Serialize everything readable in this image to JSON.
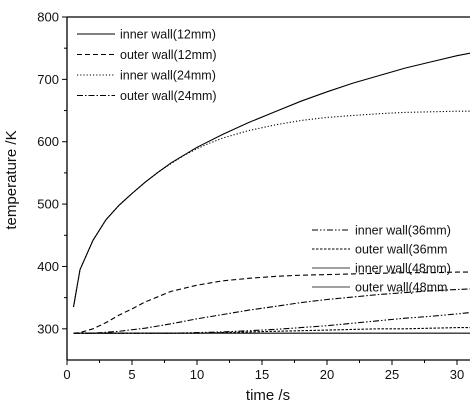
{
  "chart_data": {
    "type": "line",
    "title": "",
    "xlabel": "time  /s",
    "ylabel": "temperature  /K",
    "xlim": [
      0,
      31
    ],
    "ylim": [
      250,
      800
    ],
    "xticks": [
      0,
      5,
      10,
      15,
      20,
      25,
      30
    ],
    "yticks": [
      300,
      400,
      500,
      600,
      700,
      800
    ],
    "grid": false,
    "legend_groups": [
      "top-left",
      "right-middle"
    ],
    "series": [
      {
        "name": "inner wall(12mm)",
        "style": "solid",
        "legend_group": 0,
        "x": [
          0.5,
          1,
          2,
          3,
          4,
          5,
          6,
          7,
          8,
          10,
          12,
          14,
          16,
          18,
          20,
          22,
          24,
          26,
          28,
          30,
          31
        ],
        "y": [
          335,
          395,
          442,
          475,
          498,
          517,
          535,
          551,
          566,
          591,
          612,
          631,
          648,
          665,
          680,
          694,
          706,
          718,
          728,
          738,
          742
        ]
      },
      {
        "name": "outer wall(12mm)",
        "style": "dashed",
        "legend_group": 0,
        "x": [
          0.5,
          1,
          2,
          3,
          4,
          5,
          6,
          8,
          10,
          12,
          14,
          16,
          18,
          20,
          22,
          24,
          26,
          28,
          30,
          31
        ],
        "y": [
          293,
          294,
          300,
          310,
          322,
          332,
          343,
          360,
          370,
          377,
          381,
          384,
          386,
          387,
          388,
          389,
          390,
          390,
          391,
          391
        ]
      },
      {
        "name": "inner wall(24mm)",
        "style": "dotted",
        "legend_group": 0,
        "x": [
          0.5,
          1,
          2,
          3,
          4,
          5,
          6,
          7,
          8,
          9,
          10,
          11,
          12,
          13,
          14,
          16,
          18,
          20,
          22,
          24,
          26,
          28,
          30,
          31
        ],
        "y": [
          335,
          395,
          442,
          475,
          498,
          517,
          535,
          551,
          565,
          578,
          589,
          598,
          606,
          612,
          618,
          627,
          634,
          639,
          642,
          645,
          647,
          648,
          649,
          649
        ]
      },
      {
        "name": "outer wall(24mm)",
        "style": "dashdot",
        "legend_group": 0,
        "x": [
          0.5,
          2,
          4,
          6,
          8,
          10,
          12,
          14,
          16,
          18,
          20,
          22,
          24,
          26,
          28,
          30,
          31
        ],
        "y": [
          293,
          293,
          296,
          301,
          308,
          316,
          323,
          330,
          336,
          342,
          347,
          351,
          355,
          358,
          361,
          363,
          364
        ]
      },
      {
        "name": "inner wall(36mm)",
        "style": "dashdotdot",
        "legend_group": 1,
        "x": [
          0.5,
          4,
          8,
          10,
          12,
          14,
          16,
          18,
          20,
          22,
          24,
          26,
          28,
          30,
          31
        ],
        "y": [
          293,
          293,
          293,
          294,
          295,
          297,
          299,
          302,
          305,
          309,
          313,
          317,
          320,
          324,
          326
        ]
      },
      {
        "name": "outer wall(36mm",
        "style": "shortdash",
        "legend_group": 1,
        "x": [
          0.5,
          4,
          8,
          10,
          12,
          14,
          16,
          18,
          20,
          22,
          24,
          26,
          28,
          30,
          31
        ],
        "y": [
          293,
          293,
          293,
          293,
          294,
          295,
          296,
          297,
          298,
          299,
          300,
          300,
          301,
          302,
          302
        ]
      },
      {
        "name": "inner wall(48mm)",
        "style": "solid-thin",
        "legend_group": 1,
        "x": [
          0.5,
          10,
          20,
          31
        ],
        "y": [
          293,
          293,
          293,
          293
        ]
      },
      {
        "name": "outer wall(48mm",
        "style": "solid-thin",
        "legend_group": 1,
        "x": [
          0.5,
          10,
          20,
          31
        ],
        "y": [
          293,
          293,
          293,
          293
        ]
      }
    ]
  }
}
